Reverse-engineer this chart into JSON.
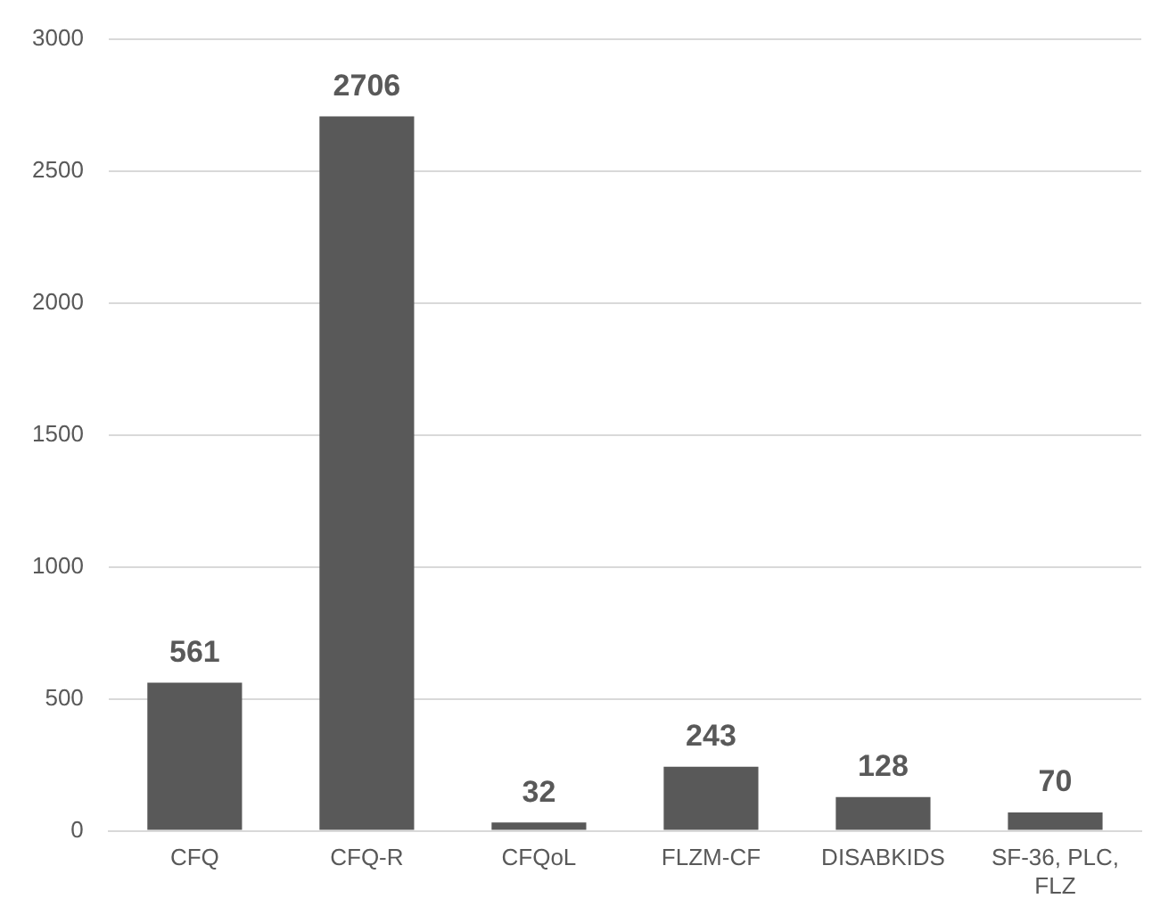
{
  "chart_data": {
    "type": "bar",
    "categories": [
      "CFQ",
      "CFQ-R",
      "CFQoL",
      "FLZM-CF",
      "DISABKIDS",
      "SF-36, PLC, FLZ"
    ],
    "values": [
      561,
      2706,
      32,
      243,
      128,
      70
    ],
    "color": "#595959",
    "ylim": [
      0,
      3000
    ],
    "yticks": [
      0,
      500,
      1000,
      1500,
      2000,
      2500,
      3000
    ],
    "grid": "y",
    "data_labels": true,
    "legend": false
  }
}
